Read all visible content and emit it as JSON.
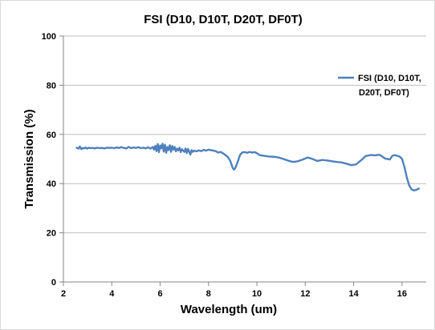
{
  "chart_data": {
    "type": "line",
    "title": "FSI (D10, D10T, D20T, DF0T)",
    "xlabel": "Wavelength (um)",
    "ylabel": "Transmission (%)",
    "xlim": [
      2,
      17
    ],
    "ylim": [
      0,
      100
    ],
    "xticks": [
      2,
      4,
      6,
      8,
      10,
      12,
      14,
      16
    ],
    "yticks": [
      0,
      20,
      40,
      60,
      80,
      100
    ],
    "grid": "horizontal",
    "legend": {
      "position": "right",
      "lines": [
        "FSI (D10, D10T,",
        "D20T, DF0T)"
      ]
    },
    "series": [
      {
        "name": "FSI (D10, D10T, D20T, DF0T)",
        "color": "#4f81bd",
        "x": [
          2.55,
          2.62,
          2.68,
          2.74,
          2.8,
          2.86,
          2.92,
          2.98,
          3.05,
          3.12,
          3.2,
          3.3,
          3.4,
          3.5,
          3.6,
          3.7,
          3.8,
          3.9,
          4.0,
          4.1,
          4.2,
          4.3,
          4.4,
          4.5,
          4.6,
          4.7,
          4.8,
          4.9,
          5.0,
          5.1,
          5.2,
          5.3,
          5.4,
          5.5,
          5.6,
          5.7,
          5.75,
          5.8,
          5.85,
          5.9,
          5.95,
          6.0,
          6.05,
          6.1,
          6.15,
          6.2,
          6.25,
          6.3,
          6.35,
          6.4,
          6.45,
          6.5,
          6.55,
          6.6,
          6.65,
          6.7,
          6.75,
          6.8,
          6.85,
          6.9,
          6.95,
          7.0,
          7.05,
          7.1,
          7.15,
          7.2,
          7.25,
          7.3,
          7.35,
          7.4,
          7.5,
          7.6,
          7.7,
          7.8,
          7.9,
          8.0,
          8.1,
          8.2,
          8.3,
          8.4,
          8.5,
          8.6,
          8.7,
          8.8,
          8.9,
          9.0,
          9.05,
          9.1,
          9.2,
          9.3,
          9.4,
          9.5,
          9.6,
          9.7,
          9.8,
          9.9,
          10.0,
          10.1,
          10.3,
          10.5,
          10.7,
          10.9,
          11.1,
          11.3,
          11.5,
          11.7,
          11.9,
          12.0,
          12.1,
          12.3,
          12.5,
          12.7,
          12.9,
          13.1,
          13.3,
          13.5,
          13.7,
          13.9,
          14.1,
          14.3,
          14.5,
          14.7,
          14.9,
          15.0,
          15.1,
          15.3,
          15.5,
          15.6,
          15.7,
          15.8,
          15.9,
          16.0,
          16.1,
          16.2,
          16.3,
          16.4,
          16.5,
          16.6,
          16.7
        ],
        "y": [
          54.6,
          54.2,
          55.1,
          54.0,
          54.5,
          54.3,
          54.7,
          54.2,
          54.6,
          54.4,
          54.5,
          54.3,
          54.6,
          54.4,
          54.5,
          54.3,
          54.6,
          54.5,
          54.6,
          54.4,
          54.7,
          54.5,
          54.8,
          54.5,
          54.3,
          54.9,
          54.4,
          54.7,
          54.5,
          54.8,
          54.4,
          54.6,
          54.3,
          54.8,
          54.2,
          54.9,
          53.8,
          55.4,
          53.2,
          56.1,
          52.8,
          55.5,
          54.3,
          56.2,
          53.0,
          55.8,
          52.5,
          54.9,
          53.6,
          55.6,
          52.9,
          55.3,
          53.8,
          54.9,
          53.1,
          54.2,
          53.5,
          54.6,
          52.8,
          54.0,
          53.4,
          52.9,
          54.3,
          52.4,
          54.1,
          53.0,
          51.8,
          53.6,
          52.9,
          53.4,
          53.1,
          53.5,
          53.2,
          53.7,
          53.4,
          53.8,
          53.6,
          53.4,
          53.2,
          52.6,
          52.9,
          52.3,
          51.6,
          50.8,
          49.2,
          46.4,
          45.7,
          46.2,
          48.6,
          51.6,
          52.7,
          52.8,
          52.5,
          52.9,
          52.6,
          52.8,
          52.4,
          51.6,
          51.3,
          51.0,
          50.9,
          50.6,
          50.0,
          49.3,
          48.8,
          49.1,
          49.8,
          50.2,
          50.6,
          50.0,
          49.2,
          49.6,
          49.4,
          49.1,
          48.8,
          48.6,
          48.1,
          47.5,
          47.8,
          49.4,
          51.2,
          51.6,
          51.5,
          51.7,
          51.6,
          50.2,
          49.8,
          51.3,
          51.6,
          51.3,
          51.0,
          50.1,
          46.8,
          42.5,
          39.2,
          37.6,
          37.2,
          37.5,
          38.0
        ]
      }
    ]
  }
}
